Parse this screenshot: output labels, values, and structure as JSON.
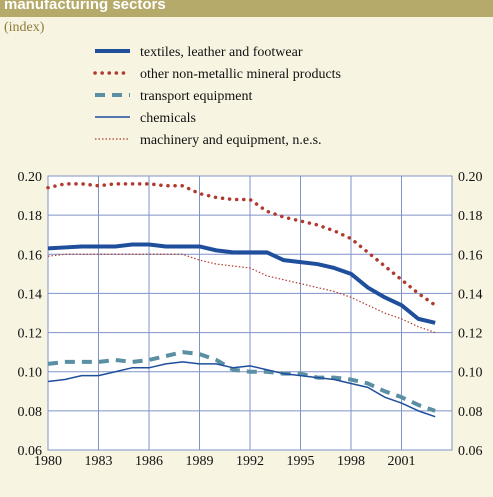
{
  "chart_data": {
    "type": "line",
    "title": "manufacturing sectors",
    "subtitle": "(index)",
    "x": [
      1980,
      1981,
      1982,
      1983,
      1984,
      1985,
      1986,
      1987,
      1988,
      1989,
      1990,
      1991,
      1992,
      1993,
      1994,
      1995,
      1996,
      1997,
      1998,
      1999,
      2000,
      2001,
      2002,
      2003
    ],
    "xlim": [
      1980,
      2004
    ],
    "xticks": [
      1980,
      1983,
      1986,
      1989,
      1992,
      1995,
      1998,
      2001
    ],
    "ylim": [
      0.06,
      0.2
    ],
    "yticks": [
      0.06,
      0.08,
      {
        "value": 0.1,
        "label": "0.10"
      },
      0.12,
      0.14,
      0.16,
      0.18,
      {
        "value": 0.2,
        "label": "0.20"
      }
    ],
    "grid": true,
    "series": [
      {
        "name": "textiles, leather and footwear",
        "color": "#1f4e9c",
        "linestyle": "solid",
        "width": 4,
        "values": [
          0.163,
          0.1635,
          0.164,
          0.164,
          0.164,
          0.165,
          0.165,
          0.164,
          0.164,
          0.164,
          0.162,
          0.161,
          0.161,
          0.161,
          0.157,
          0.156,
          0.155,
          0.153,
          0.15,
          0.143,
          0.138,
          0.134,
          0.127,
          0.125
        ]
      },
      {
        "name": "other non-metallic mineral products",
        "color": "#b03a2e",
        "linestyle": "dotted",
        "width": 3.5,
        "values": [
          0.194,
          0.196,
          0.196,
          0.195,
          0.196,
          0.196,
          0.196,
          0.195,
          0.195,
          0.191,
          0.189,
          0.188,
          0.188,
          0.182,
          0.179,
          0.177,
          0.175,
          0.172,
          0.168,
          0.161,
          0.154,
          0.147,
          0.14,
          0.134
        ]
      },
      {
        "name": "transport equipment",
        "color": "#5b8fa3",
        "linestyle": "dashed",
        "width": 4,
        "values": [
          0.104,
          0.105,
          0.105,
          0.105,
          0.106,
          0.105,
          0.106,
          0.108,
          0.11,
          0.109,
          0.106,
          0.101,
          0.1,
          0.1,
          0.099,
          0.099,
          0.097,
          0.097,
          0.096,
          0.094,
          0.09,
          0.087,
          0.083,
          0.08
        ]
      },
      {
        "name": "chemicals",
        "color": "#1f4e9c",
        "linestyle": "solid",
        "width": 1.5,
        "values": [
          0.095,
          0.096,
          0.098,
          0.098,
          0.1,
          0.102,
          0.102,
          0.104,
          0.105,
          0.104,
          0.104,
          0.102,
          0.103,
          0.101,
          0.099,
          0.098,
          0.097,
          0.096,
          0.094,
          0.092,
          0.087,
          0.084,
          0.08,
          0.077
        ]
      },
      {
        "name": "machinery and equipment, n.e.s.",
        "color": "#b03a2e",
        "linestyle": "dotted",
        "width": 1.2,
        "values": [
          0.159,
          0.16,
          0.16,
          0.16,
          0.16,
          0.16,
          0.16,
          0.16,
          0.16,
          0.157,
          0.155,
          0.154,
          0.153,
          0.149,
          0.147,
          0.145,
          0.143,
          0.141,
          0.138,
          0.134,
          0.13,
          0.127,
          0.123,
          0.12
        ]
      }
    ]
  }
}
